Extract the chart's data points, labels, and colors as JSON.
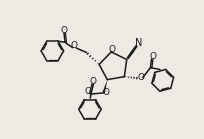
{
  "bg_color": "#ede9e3",
  "line_color": "#1a1a1a",
  "line_width": 1.1,
  "figsize": [
    2.05,
    1.39
  ],
  "dpi": 100,
  "xlim": [
    0,
    10
  ],
  "ylim": [
    0,
    6.8
  ]
}
